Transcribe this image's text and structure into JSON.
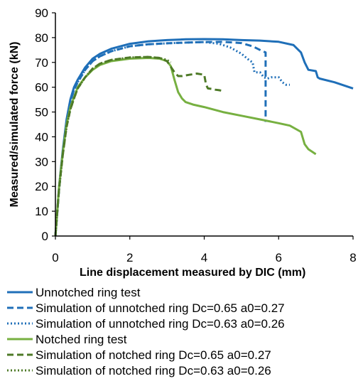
{
  "chart_data": {
    "type": "line",
    "xlabel": "Line displacement  measured  by DIC (mm)",
    "ylabel": "Measured/simulated  force  (kN)",
    "xlim": [
      0,
      8
    ],
    "ylim": [
      0,
      90
    ],
    "xticks": [
      0,
      2,
      4,
      6,
      8
    ],
    "yticks": [
      0,
      10,
      20,
      30,
      40,
      50,
      60,
      70,
      80,
      90
    ],
    "grid": false,
    "legend_position": "bottom",
    "series": [
      {
        "name": "Unnotched ring test",
        "color": "#1f6fb8",
        "style": "solid",
        "x": [
          0,
          0.1,
          0.2,
          0.3,
          0.4,
          0.5,
          0.6,
          0.8,
          1.0,
          1.2,
          1.5,
          2.0,
          2.5,
          3.0,
          3.5,
          4.0,
          4.5,
          5.0,
          5.5,
          6.0,
          6.4,
          6.6,
          6.7,
          6.8,
          7.0,
          7.05,
          7.1,
          7.5,
          8.0
        ],
        "y": [
          0,
          20,
          35,
          47,
          55,
          60,
          63,
          68,
          71.5,
          73.5,
          75.5,
          77.5,
          78.5,
          79,
          79.3,
          79.4,
          79.3,
          79,
          78.8,
          78.3,
          77,
          74,
          70,
          67,
          66.5,
          64,
          63.5,
          62,
          59.5
        ]
      },
      {
        "name": "Simulation of unnotched ring Dc=0.65 a0=0.27",
        "color": "#1f6fb8",
        "style": "dashed",
        "x": [
          0,
          0.1,
          0.2,
          0.3,
          0.4,
          0.5,
          0.6,
          0.8,
          1.0,
          1.2,
          1.5,
          2.0,
          2.5,
          3.0,
          3.5,
          4.0,
          4.5,
          5.0,
          5.3,
          5.5,
          5.65,
          5.65
        ],
        "y": [
          0,
          19,
          34,
          46,
          54,
          59,
          62,
          67,
          70.5,
          72.5,
          74.5,
          76.5,
          77.3,
          77.7,
          78,
          78.2,
          78.3,
          77.8,
          76.5,
          75,
          74,
          46
        ]
      },
      {
        "name": "Simulation of unnotched ring Dc=0.63 a0=0.26",
        "color": "#1f6fb8",
        "style": "dotted",
        "x": [
          0,
          0.1,
          0.2,
          0.3,
          0.4,
          0.5,
          0.6,
          0.8,
          1.0,
          1.2,
          1.5,
          2.0,
          2.5,
          3.0,
          3.5,
          4.0,
          4.4,
          4.7,
          5.0,
          5.2,
          5.3,
          5.35,
          5.4,
          5.5,
          5.55,
          5.6,
          5.7,
          5.8,
          5.9,
          6.0,
          6.1,
          6.2,
          6.3
        ],
        "y": [
          0,
          19,
          34,
          46,
          54,
          59,
          62,
          67,
          70.5,
          72.5,
          74.5,
          76.5,
          77.3,
          77.7,
          78,
          78.2,
          77.5,
          76,
          73.5,
          71,
          70,
          66,
          66,
          66,
          65,
          64,
          63.5,
          64,
          64,
          64,
          62,
          61,
          61
        ]
      },
      {
        "name": "Notched ring test",
        "color": "#77b041",
        "style": "solid",
        "x": [
          0,
          0.1,
          0.2,
          0.3,
          0.4,
          0.5,
          0.6,
          0.8,
          1.0,
          1.2,
          1.5,
          2.0,
          2.5,
          2.8,
          3.0,
          3.1,
          3.2,
          3.3,
          3.4,
          3.5,
          3.7,
          4.0,
          4.5,
          5.0,
          5.5,
          6.0,
          6.3,
          6.6,
          6.7,
          6.8,
          7.0
        ],
        "y": [
          0,
          20,
          34,
          45,
          52,
          56,
          60,
          64,
          67,
          69,
          70.5,
          71.5,
          71.8,
          71.5,
          70.5,
          68.5,
          63,
          58,
          55.5,
          54,
          53,
          52,
          50,
          48.5,
          47,
          45.5,
          44.5,
          42,
          37,
          35,
          33
        ]
      },
      {
        "name": "Simulation of notched ring Dc=0.65 a0=0.27",
        "color": "#4e7a27",
        "style": "dashed",
        "x": [
          0,
          0.1,
          0.2,
          0.3,
          0.4,
          0.5,
          0.6,
          0.8,
          1.0,
          1.2,
          1.5,
          2.0,
          2.5,
          2.8,
          3.0,
          3.2,
          3.3,
          3.4,
          3.6,
          3.8,
          4.0,
          4.05,
          4.1,
          4.2,
          4.3,
          4.4,
          4.5
        ],
        "y": [
          0,
          19,
          33,
          44,
          51,
          55.5,
          59.5,
          64,
          67.5,
          69.5,
          71,
          72,
          72.2,
          71.8,
          70.5,
          66,
          64.5,
          64.5,
          65,
          65.5,
          65,
          61,
          59.5,
          59.3,
          59,
          58.8,
          58.5
        ]
      },
      {
        "name": "Simulation of notched ring Dc=0.63 a0=0.26",
        "color": "#4e7a27",
        "style": "dotted",
        "x": [
          0,
          0.1,
          0.2,
          0.3,
          0.4,
          0.5,
          0.6,
          0.8,
          1.0,
          1.2,
          1.5,
          2.0,
          2.5,
          2.8,
          3.0,
          3.05,
          3.1
        ],
        "y": [
          0,
          19,
          33,
          44,
          51,
          55.5,
          59.5,
          64,
          67.5,
          69.5,
          71,
          72,
          72.2,
          71.8,
          71,
          70.5,
          70
        ]
      }
    ]
  }
}
